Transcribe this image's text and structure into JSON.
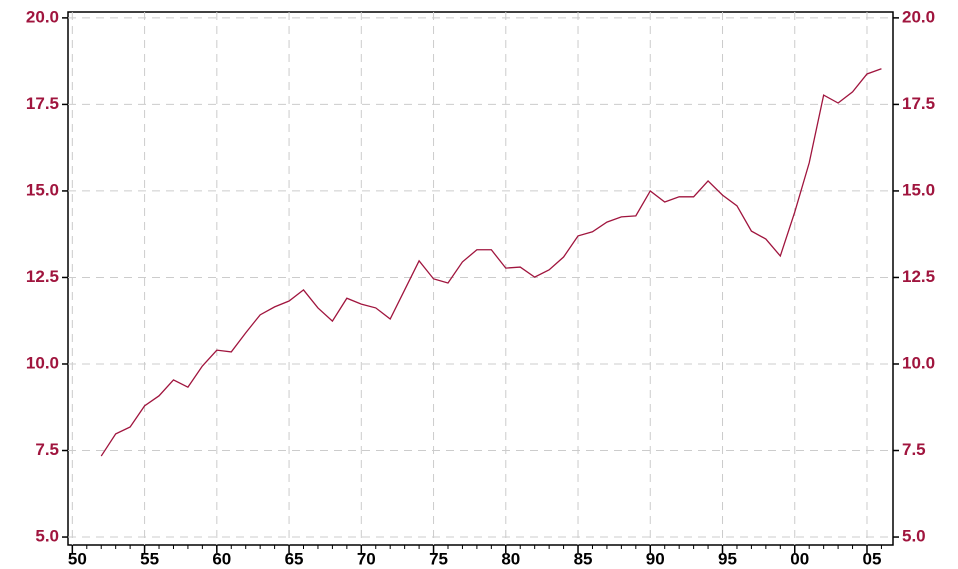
{
  "chart_data": {
    "type": "line",
    "x": [
      1952,
      1953,
      1954,
      1955,
      1956,
      1957,
      1958,
      1959,
      1960,
      1961,
      1962,
      1963,
      1964,
      1965,
      1966,
      1967,
      1968,
      1969,
      1970,
      1971,
      1972,
      1973,
      1974,
      1975,
      1976,
      1977,
      1978,
      1979,
      1980,
      1981,
      1982,
      1983,
      1984,
      1985,
      1986,
      1987,
      1988,
      1989,
      1990,
      1991,
      1992,
      1993,
      1994,
      1995,
      1996,
      1997,
      1998,
      1999,
      2000,
      2001,
      2002,
      2003,
      2004,
      2005,
      2006
    ],
    "series": [
      {
        "color": "#a0153e",
        "values": [
          7.34,
          7.98,
          8.18,
          8.79,
          9.08,
          9.54,
          9.33,
          9.94,
          10.4,
          10.35,
          10.9,
          11.42,
          11.65,
          11.82,
          12.14,
          11.62,
          11.24,
          11.9,
          11.73,
          11.62,
          11.3,
          12.14,
          12.98,
          12.46,
          12.34,
          12.95,
          13.3,
          13.3,
          12.77,
          12.8,
          12.51,
          12.72,
          13.09,
          13.7,
          13.82,
          14.1,
          14.25,
          14.28,
          15.0,
          14.68,
          14.83,
          14.83,
          15.29,
          14.88,
          14.57,
          13.84,
          13.61,
          13.12,
          14.39,
          15.81,
          17.77,
          17.54,
          17.86,
          18.38,
          18.53
        ]
      }
    ],
    "xlim": [
      1949.7,
      2006.8
    ],
    "xticks": [
      {
        "value": 1950,
        "label": "50"
      },
      {
        "value": 1955,
        "label": "55"
      },
      {
        "value": 1960,
        "label": "60"
      },
      {
        "value": 1965,
        "label": "65"
      },
      {
        "value": 1970,
        "label": "70"
      },
      {
        "value": 1975,
        "label": "75"
      },
      {
        "value": 1980,
        "label": "80"
      },
      {
        "value": 1985,
        "label": "85"
      },
      {
        "value": 1990,
        "label": "90"
      },
      {
        "value": 1995,
        "label": "95"
      },
      {
        "value": 2000,
        "label": "00"
      },
      {
        "value": 2005,
        "label": "05"
      }
    ],
    "xticks_minor": [
      1950,
      1951,
      1952,
      1953,
      1954,
      1955,
      1956,
      1957,
      1958,
      1959,
      1960,
      1961,
      1962,
      1963,
      1964,
      1965,
      1966,
      1967,
      1968,
      1969,
      1970,
      1971,
      1972,
      1973,
      1974,
      1975,
      1976,
      1977,
      1978,
      1979,
      1980,
      1981,
      1982,
      1983,
      1984,
      1985,
      1986,
      1987,
      1988,
      1989,
      1990,
      1991,
      1992,
      1993,
      1994,
      1995,
      1996,
      1997,
      1998,
      1999,
      2000,
      2001,
      2002,
      2003,
      2004,
      2005,
      2006
    ],
    "ylim": [
      4.77,
      20.17
    ],
    "yticks": [
      {
        "value": 5,
        "label": "5.0"
      },
      {
        "value": 7.5,
        "label": "7.5"
      },
      {
        "value": 10,
        "label": "10.0"
      },
      {
        "value": 12.5,
        "label": "12.5"
      },
      {
        "value": 15,
        "label": "15.0"
      },
      {
        "value": 17.5,
        "label": "17.5"
      },
      {
        "value": 20,
        "label": "20.0"
      }
    ],
    "grid": true,
    "tick_label_color": "#a0153e"
  }
}
